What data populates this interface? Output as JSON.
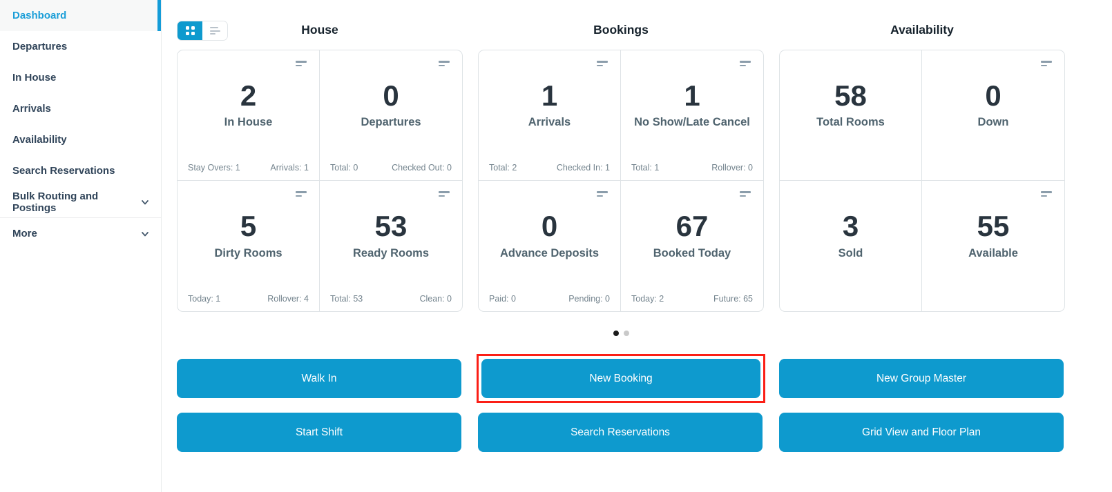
{
  "sidebar": {
    "items": [
      {
        "label": "Dashboard",
        "active": true
      },
      {
        "label": "Departures"
      },
      {
        "label": "In House"
      },
      {
        "label": "Arrivals"
      },
      {
        "label": "Availability"
      },
      {
        "label": "Search Reservations"
      },
      {
        "label": "Bulk Routing and Postings",
        "chevron": true
      },
      {
        "label": "More",
        "chevron": true,
        "divider_above": true
      }
    ]
  },
  "view_toggle": {
    "active": "grid",
    "options": [
      "grid-view-icon",
      "list-view-icon"
    ]
  },
  "groups": [
    {
      "title": "House",
      "cards": [
        {
          "value": "2",
          "label": "In House",
          "footer_left": "Stay Overs: 1",
          "footer_right": "Arrivals: 1",
          "menu_icon": true
        },
        {
          "value": "0",
          "label": "Departures",
          "footer_left": "Total: 0",
          "footer_right": "Checked Out: 0",
          "menu_icon": true
        },
        {
          "value": "5",
          "label": "Dirty Rooms",
          "footer_left": "Today: 1",
          "footer_right": "Rollover: 4",
          "menu_icon": true
        },
        {
          "value": "53",
          "label": "Ready Rooms",
          "footer_left": "Total: 53",
          "footer_right": "Clean: 0",
          "menu_icon": true
        }
      ]
    },
    {
      "title": "Bookings",
      "cards": [
        {
          "value": "1",
          "label": "Arrivals",
          "footer_left": "Total: 2",
          "footer_right": "Checked In: 1",
          "menu_icon": true
        },
        {
          "value": "1",
          "label": "No Show/Late Cancel",
          "footer_left": "Total: 1",
          "footer_right": "Rollover: 0",
          "menu_icon": true
        },
        {
          "value": "0",
          "label": "Advance Deposits",
          "footer_left": "Paid: 0",
          "footer_right": "Pending: 0",
          "menu_icon": true
        },
        {
          "value": "67",
          "label": "Booked Today",
          "footer_left": "Today: 2",
          "footer_right": "Future: 65",
          "menu_icon": true
        }
      ]
    },
    {
      "title": "Availability",
      "cards": [
        {
          "value": "58",
          "label": "Total Rooms",
          "menu_icon": false
        },
        {
          "value": "0",
          "label": "Down",
          "menu_icon": true
        },
        {
          "value": "3",
          "label": "Sold",
          "menu_icon": false
        },
        {
          "value": "55",
          "label": "Available",
          "menu_icon": true
        }
      ]
    }
  ],
  "pagination": {
    "dot_count": 2,
    "active_index": 0
  },
  "action_buttons": {
    "rows": [
      [
        "Walk In",
        "New Booking",
        "New Group Master"
      ],
      [
        "Start Shift",
        "Search Reservations",
        "Grid View and Floor Plan"
      ]
    ],
    "highlighted": "New Booking"
  },
  "colors": {
    "accent_blue": "#0e9ace",
    "sidebar_active_blue": "#1b9ed8",
    "highlight_red": "#fb1f16",
    "card_number": "#29343e"
  }
}
